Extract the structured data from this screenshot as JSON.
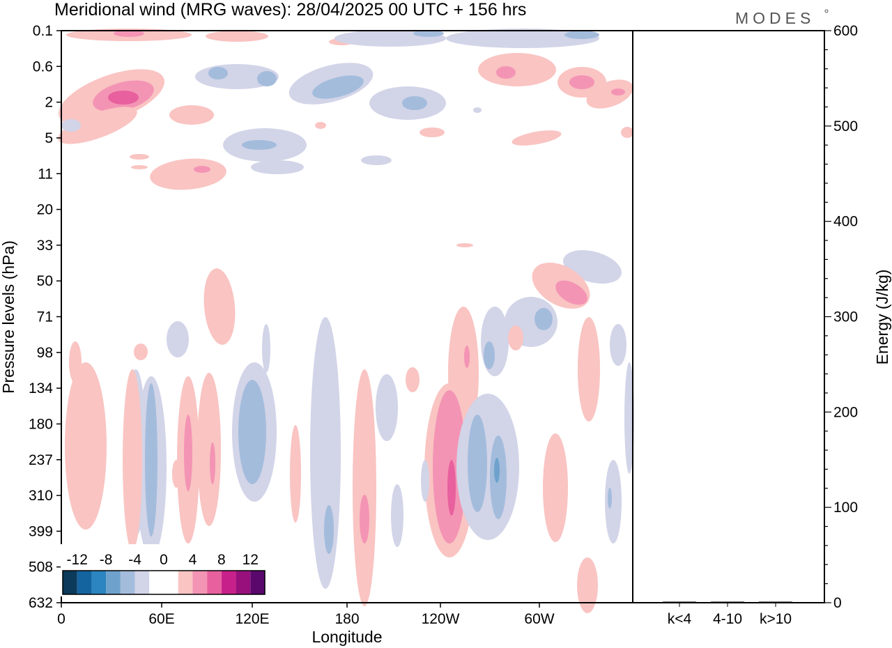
{
  "header": {
    "title": "Meridional wind (MRG waves):  28/04/2025  00 UTC  + 156 hrs",
    "brand": "MODES"
  },
  "chart_data": {
    "type": "heatmap",
    "title": "Meridional wind (MRG waves):  28/04/2025  00 UTC  + 156 hrs",
    "xlabel": "Longitude",
    "ylabel": "Pressure levels (hPa)",
    "y2label": "Energy (J/kg)",
    "x_ticks": [
      "0",
      "60E",
      "120E",
      "180",
      "120W",
      "60W"
    ],
    "y_ticks": [
      "0.1",
      "0.6",
      "2",
      "5",
      "11",
      "20",
      "33",
      "50",
      "71",
      "98",
      "134",
      "180",
      "237",
      "310",
      "399",
      "508",
      "632"
    ],
    "y2_ticks": [
      "0",
      "100",
      "200",
      "300",
      "400",
      "500",
      "600"
    ],
    "y2lim": [
      0,
      600
    ],
    "energy_categories": [
      "k<4",
      "4-10",
      "k>10"
    ],
    "energy_values": [
      0,
      1,
      0
    ],
    "colorbar": {
      "tick_labels": [
        "-12",
        "-8",
        "-4",
        "0",
        "4",
        "8",
        "12"
      ],
      "colors": [
        "#0c3a5a",
        "#1464a0",
        "#2c84c0",
        "#6ea2cc",
        "#a4bcdc",
        "#d2d4e8",
        "#ffffff",
        "#ffffff",
        "#f9c4c2",
        "#f494b4",
        "#e8609e",
        "#c8208a",
        "#98107c",
        "#5a086c"
      ]
    },
    "grid": false,
    "legend": "colorbar bottom-left"
  }
}
